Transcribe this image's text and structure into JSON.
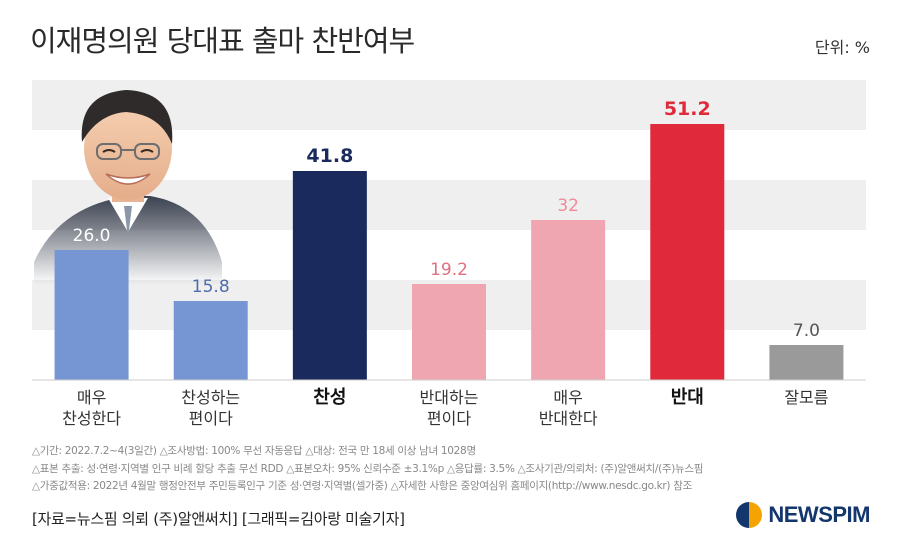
{
  "header": {
    "title": "이재명의원 당대표 출마 찬반여부",
    "unit": "단위: %"
  },
  "chart_data": {
    "type": "bar",
    "title": "이재명의원 당대표 출마 찬반여부",
    "unit": "단위: %",
    "categories": [
      [
        "매우",
        "찬성한다"
      ],
      [
        "찬성하는",
        "편이다"
      ],
      [
        "찬성"
      ],
      [
        "반대하는",
        "편이다"
      ],
      [
        "매우",
        "반대한다"
      ],
      [
        "반대"
      ],
      [
        "잘모름"
      ]
    ],
    "values": [
      26.0,
      15.8,
      41.8,
      19.2,
      32,
      51.2,
      7.0
    ],
    "value_labels": [
      "26.0",
      "15.8",
      "41.8",
      "19.2",
      "32",
      "51.2",
      "7.0"
    ],
    "emphasized": [
      false,
      false,
      true,
      false,
      false,
      true,
      false
    ],
    "bar_colors": [
      "#7596d3",
      "#7596d3",
      "#1b2a5c",
      "#f0a6b1",
      "#f0a6b1",
      "#e02a3c",
      "#9a9a9a"
    ],
    "label_colors": [
      "#ffffff",
      "#4e6da8",
      "#1b2a5c",
      "#e0707f",
      "#f08a9a",
      "#e02a3c",
      "#555555"
    ],
    "ylim": [
      0,
      60
    ],
    "grid": "alternating bands",
    "xlabel": "",
    "ylabel": ""
  },
  "notes": [
    "△기간: 2022.7.2~4(3일간) △조사방법: 100% 무선 자동응답 △대상: 전국 만 18세 이상 남녀 1028명",
    "△표본 추출: 성·연령·지역별 인구 비례 할당 추출 무선 RDD △표본오차: 95% 신뢰수준 ±3.1%p △응답률: 3.5% △조사기관/의뢰처: (주)알앤써치/(주)뉴스핌",
    "△가중값적용: 2022년 4월말 행정안전부 주민등록인구 기준 성·연령·지역별(셀가중) △자세한 사항은 중앙여심위 홈페이지(http://www.nesdc.go.kr) 참조"
  ],
  "source": "[자료=뉴스핌 의뢰 (주)알앤써치] [그래픽=김아랑 미술기자]",
  "logo": {
    "text": "NEWSPIM"
  }
}
